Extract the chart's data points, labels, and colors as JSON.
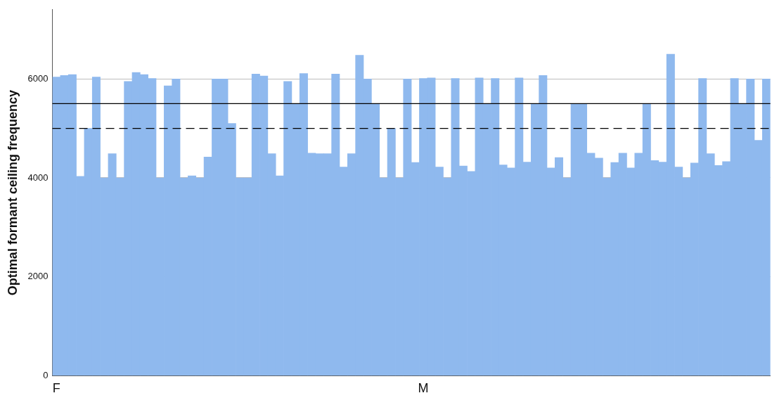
{
  "chart_data": {
    "type": "bar",
    "ylabel": "Optimal formant ceiling frequency",
    "categories": [
      "F",
      null,
      null,
      null,
      null,
      null,
      null,
      null,
      null,
      null,
      null,
      null,
      null,
      null,
      null,
      null,
      null,
      null,
      null,
      null,
      null,
      null,
      null,
      null,
      null,
      null,
      null,
      null,
      null,
      null,
      null,
      null,
      null,
      null,
      null,
      null,
      null,
      null,
      null,
      null,
      null,
      null,
      null,
      null,
      null,
      null,
      "M",
      null,
      null,
      null,
      null,
      null,
      null,
      null,
      null,
      null,
      null,
      null,
      null,
      null,
      null,
      null,
      null,
      null,
      null,
      null,
      null,
      null,
      null,
      null,
      null,
      null,
      null,
      null,
      null,
      null,
      null,
      null,
      null,
      null,
      null,
      null,
      null,
      null,
      null,
      null,
      null,
      null,
      null,
      null
    ],
    "values": [
      6040,
      6070,
      6090,
      4030,
      5000,
      6040,
      4000,
      4490,
      4000,
      5950,
      6130,
      6090,
      6010,
      4000,
      5860,
      6000,
      4000,
      4040,
      4000,
      4420,
      6000,
      6000,
      5100,
      4000,
      4000,
      6100,
      6060,
      4490,
      4040,
      5950,
      5500,
      6110,
      4500,
      4490,
      4490,
      6100,
      4220,
      4490,
      6480,
      6000,
      5500,
      4000,
      5000,
      4000,
      6000,
      4310,
      6010,
      6020,
      4220,
      4000,
      6010,
      4240,
      4130,
      6020,
      5500,
      6010,
      4260,
      4200,
      6020,
      4320,
      5500,
      6070,
      4200,
      4410,
      4000,
      5500,
      5500,
      4500,
      4400,
      4000,
      4310,
      4500,
      4200,
      4500,
      5500,
      4350,
      4320,
      6500,
      4220,
      4000,
      4300,
      6010,
      4490,
      4250,
      4330,
      6010,
      5500,
      6000,
      4760,
      6000
    ],
    "color": "#8fb9ee",
    "ylim": [
      0,
      7400
    ],
    "yticks": [
      0,
      2000,
      4000,
      6000
    ],
    "grid": "y",
    "ref_lines": [
      {
        "axis": "y",
        "value": 5500,
        "color": "#000000",
        "line_style": "solid"
      },
      {
        "axis": "y",
        "value": 5000,
        "color": "#000000",
        "line_style": "dashed"
      }
    ]
  }
}
